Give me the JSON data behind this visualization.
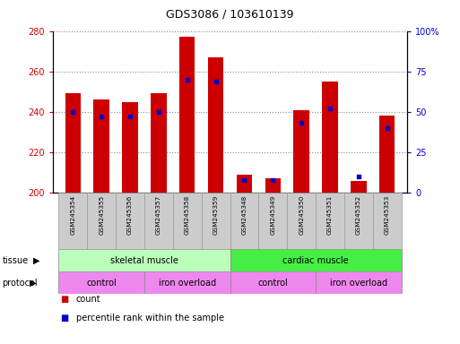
{
  "title": "GDS3086 / 103610139",
  "samples": [
    "GSM245354",
    "GSM245355",
    "GSM245356",
    "GSM245357",
    "GSM245358",
    "GSM245359",
    "GSM245348",
    "GSM245349",
    "GSM245350",
    "GSM245351",
    "GSM245352",
    "GSM245353"
  ],
  "count_values": [
    249,
    246,
    245,
    249,
    277,
    267,
    209,
    207,
    241,
    255,
    206,
    238
  ],
  "count_base": 200,
  "percentile_values": [
    50,
    47,
    47,
    50,
    70,
    69,
    8,
    8,
    43,
    52,
    10,
    40
  ],
  "ylim_left": [
    200,
    280
  ],
  "ylim_right": [
    0,
    100
  ],
  "yticks_left": [
    200,
    220,
    240,
    260,
    280
  ],
  "yticks_right": [
    0,
    25,
    50,
    75,
    100
  ],
  "ytick_labels_right": [
    "0",
    "25",
    "50",
    "75",
    "100%"
  ],
  "bar_color": "#cc0000",
  "percentile_color": "#0000cc",
  "bar_width": 0.55,
  "tissue_skeletal_color": "#bbffbb",
  "tissue_cardiac_color": "#44ee44",
  "protocol_color": "#ee88ee",
  "grid_color": "#888888",
  "background_color": "#ffffff",
  "tick_label_color_left": "#cc0000",
  "tick_label_color_right": "#0000cc",
  "xticklabel_bg": "#cccccc"
}
